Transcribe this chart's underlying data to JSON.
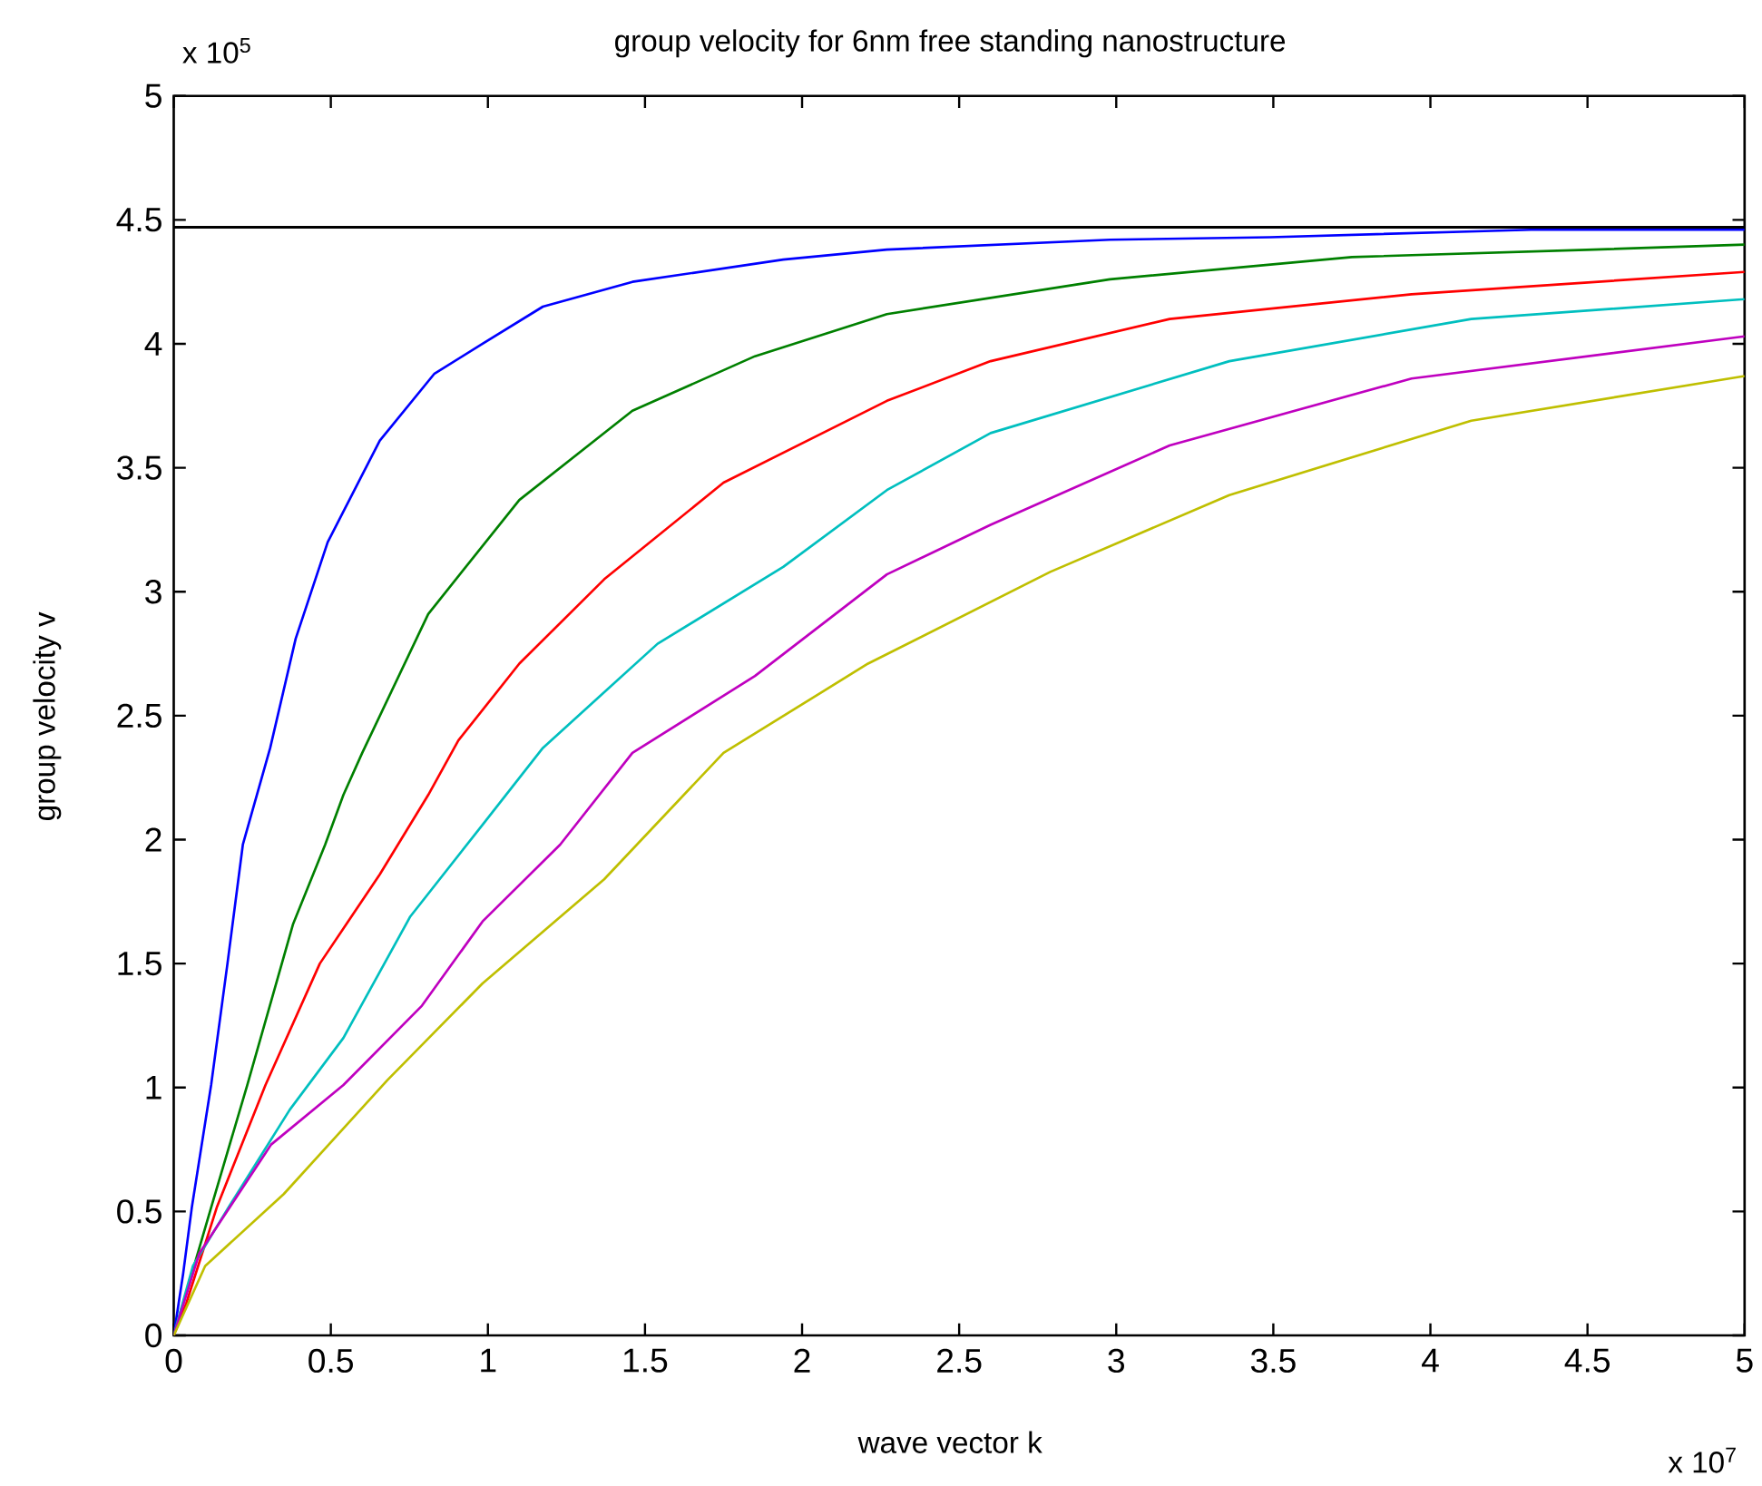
{
  "chart_data": {
    "type": "line",
    "title": "group velocity for 6nm free standing nanostructure",
    "xlabel": "wave vector k",
    "ylabel": "group velocity v",
    "annotations": [
      "x 10$^{5}$",
      "x 10$^{7}$"
    ],
    "xlim": [
      0,
      5
    ],
    "ylim": [
      0,
      5
    ],
    "xticks": [
      0,
      0.5,
      1,
      1.5,
      2,
      2.5,
      3,
      3.5,
      4,
      4.5,
      5
    ],
    "yticks": [
      0,
      0.5,
      1,
      1.5,
      2,
      2.5,
      3,
      3.5,
      4,
      4.5,
      5
    ],
    "ref_lines": [
      {
        "axis": "y",
        "value": 4.47,
        "color": "#000000"
      }
    ],
    "series": [
      {
        "color": "#0000ff",
        "x": [
          0,
          0.03,
          0.058,
          0.119,
          0.171,
          0.22,
          0.307,
          0.388,
          0.49,
          0.656,
          0.83,
          0.983,
          1.175,
          1.46,
          1.94,
          2.27,
          2.98,
          3.49,
          4.32,
          5
        ],
        "values": [
          0,
          0.25,
          0.52,
          1.01,
          1.5,
          1.98,
          2.37,
          2.81,
          3.2,
          3.61,
          3.88,
          4.0,
          4.15,
          4.25,
          4.34,
          4.38,
          4.42,
          4.43,
          4.46,
          4.46
        ]
      },
      {
        "color": "#008000",
        "x": [
          0,
          0.04,
          0.12,
          0.234,
          0.38,
          0.482,
          0.54,
          0.6,
          0.81,
          1.1,
          1.46,
          1.85,
          2.27,
          2.98,
          3.75,
          4.52,
          5
        ],
        "values": [
          0,
          null,
          0.52,
          1.01,
          1.66,
          1.98,
          2.18,
          2.35,
          2.91,
          3.37,
          3.73,
          3.95,
          4.12,
          4.26,
          4.35,
          4.38,
          4.4
        ]
      },
      {
        "color": "#ff0000",
        "x": [
          0,
          0.04,
          0.138,
          0.292,
          0.465,
          0.656,
          0.81,
          0.906,
          1.1,
          1.37,
          1.75,
          2.27,
          2.6,
          3.17,
          3.94,
          5
        ],
        "values": [
          0,
          0.13,
          0.52,
          1.01,
          1.5,
          1.86,
          2.18,
          2.4,
          2.71,
          3.05,
          3.44,
          3.77,
          3.93,
          4.1,
          4.2,
          4.29
        ]
      },
      {
        "color": "#00bfbf",
        "x": [
          0,
          0.061,
          0.176,
          0.369,
          0.54,
          0.753,
          0.983,
          1.175,
          1.54,
          1.94,
          2.27,
          2.6,
          3.36,
          4.13,
          5
        ],
        "values": [
          0,
          0.28,
          0.52,
          0.91,
          1.2,
          1.69,
          2.06,
          2.37,
          2.79,
          3.1,
          3.41,
          3.64,
          3.93,
          4.1,
          4.18
        ]
      },
      {
        "color": "#bf00bf",
        "x": [
          0,
          0.081,
          0.31,
          0.54,
          0.79,
          0.983,
          1.23,
          1.46,
          1.85,
          2.27,
          2.6,
          3.17,
          3.94,
          5
        ],
        "values": [
          0,
          0.33,
          0.77,
          1.01,
          1.33,
          1.67,
          1.98,
          2.35,
          2.66,
          3.07,
          3.27,
          3.59,
          3.86,
          4.03
        ]
      },
      {
        "color": "#bfbf00",
        "x": [
          0,
          0.1,
          0.35,
          0.68,
          0.983,
          1.37,
          1.75,
          2.21,
          2.79,
          3.36,
          4.13,
          5
        ],
        "values": [
          0,
          0.28,
          0.57,
          1.03,
          1.42,
          1.84,
          2.35,
          2.71,
          3.08,
          3.39,
          3.69,
          3.87
        ]
      }
    ]
  }
}
